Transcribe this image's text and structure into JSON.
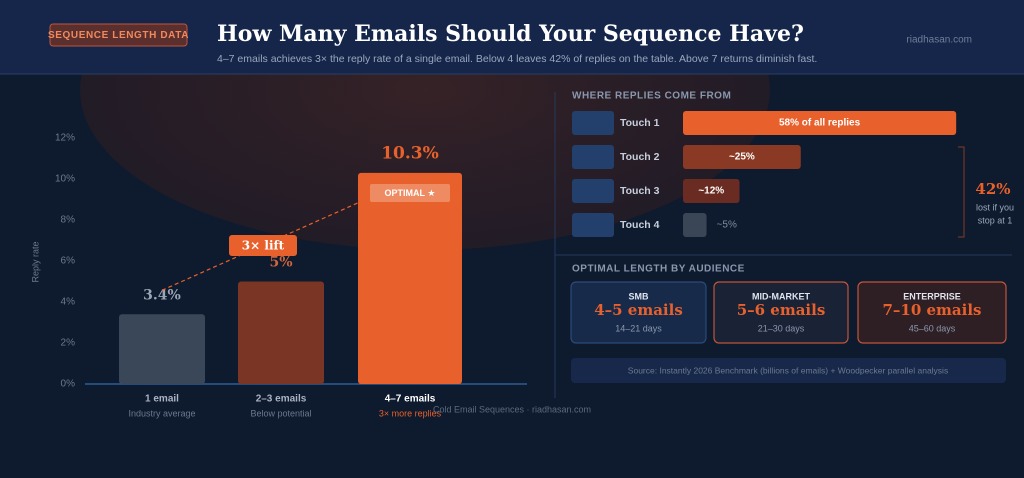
{
  "header": {
    "badge": "SEQUENCE LENGTH DATA",
    "title": "How Many Emails Should Your Sequence Have?",
    "subtitle": "4–7 emails achieves 3× the reply rate of a single email. Below 4 leaves 42% of replies on the table. Above 7 returns diminish fast.",
    "brand": "riadhasan.com"
  },
  "chart_data": [
    {
      "type": "bar",
      "ylabel": "Reply rate",
      "categories": [
        "1 email",
        "2–3 emails",
        "4–7 emails"
      ],
      "sublabels": [
        "Industry average",
        "Below potential",
        "3× more replies"
      ],
      "values": [
        3.4,
        5,
        10.3
      ],
      "value_labels": [
        "3.4%",
        "5%",
        "10.3%"
      ],
      "colors": [
        "#3a4759",
        "#7a3524",
        "#e8612c"
      ],
      "ylim": [
        0,
        13
      ],
      "yticks": [
        {
          "value": 0,
          "label": "0%"
        },
        {
          "value": 2,
          "label": "2%"
        },
        {
          "value": 4,
          "label": "4%"
        },
        {
          "value": 6,
          "label": "6%"
        },
        {
          "value": 8,
          "label": "8%"
        },
        {
          "value": 10,
          "label": "10%"
        },
        {
          "value": 12,
          "label": "12%"
        }
      ],
      "annotations": [
        "3× lift",
        "OPTIMAL ★"
      ]
    },
    {
      "type": "hbar",
      "title": "WHERE REPLIES COME FROM",
      "categories": [
        "Touch 1",
        "Touch 2",
        "Touch 3",
        "Touch 4"
      ],
      "values": [
        58,
        25,
        12,
        5
      ],
      "value_labels": [
        "58% of all replies",
        "~25%",
        "~12%",
        "~5%"
      ],
      "colors": [
        "#e8612c",
        "#8a3a24",
        "#6a2c22",
        "#3a4656"
      ],
      "annotation_value": "42%",
      "annotation_note": [
        "lost if you",
        "stop at 1"
      ]
    }
  ],
  "audience": {
    "title": "OPTIMAL LENGTH BY AUDIENCE",
    "cards": [
      {
        "segment": "SMB",
        "length": "4–5 emails",
        "days": "14–21 days"
      },
      {
        "segment": "MID-MARKET",
        "length": "5–6 emails",
        "days": "21–30 days"
      },
      {
        "segment": "ENTERPRISE",
        "length": "7–10 emails",
        "days": "45–60 days"
      }
    ]
  },
  "source": "Source: Instantly 2026 Benchmark (billions of emails) + Woodpecker parallel analysis",
  "footer": "Cold Email Sequences · riadhasan.com"
}
